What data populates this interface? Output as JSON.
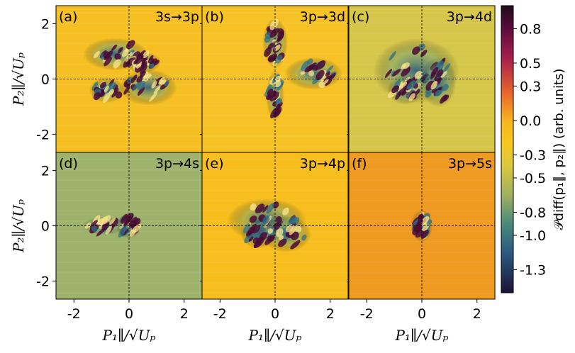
{
  "chart_data": {
    "type": "heatmap",
    "layout": "2x3 grid",
    "x_axis": {
      "label": "P₁∥/√Uₚ",
      "range": [
        -2.65,
        2.65
      ],
      "ticks": [
        -2,
        0,
        2
      ],
      "tick_labels": [
        "-2",
        "0",
        "2"
      ]
    },
    "y_axis": {
      "label": "P₂∥/√Uₚ",
      "range": [
        -2.65,
        2.65
      ],
      "ticks": [
        2,
        0,
        -2
      ],
      "tick_labels": [
        "2",
        "0",
        "-2"
      ]
    },
    "reference_lines": {
      "x": 0,
      "y": 0,
      "style": "dashed"
    },
    "panels": [
      {
        "id": "(a)",
        "transition": "3s→3p",
        "background": "#f6c024"
      },
      {
        "id": "(b)",
        "transition": "3p→3d",
        "background": "#f6c226"
      },
      {
        "id": "(c)",
        "transition": "3p→4d",
        "background": "#d6c64a"
      },
      {
        "id": "(d)",
        "transition": "3p→4s",
        "background": "#9fb26b"
      },
      {
        "id": "(e)",
        "transition": "3p→4p",
        "background": "#f7be1e"
      },
      {
        "id": "(f)",
        "transition": "3p→5s",
        "background": "#ef9a20"
      }
    ],
    "colorbar": {
      "label": "𝒫diff(p₁∥, p₂∥) (arb. units)",
      "range": [
        -1.5,
        1.0
      ],
      "ticks": [
        0.8,
        0.5,
        0.3,
        0.0,
        -0.3,
        -0.5,
        -0.8,
        -1.0,
        -1.3
      ],
      "tick_labels": [
        "0.8",
        "0.5",
        "0.3",
        "0.0",
        "-0.3",
        "-0.5",
        "-0.8",
        "-1.0",
        "-1.3"
      ],
      "colormap": "inferno-like diverging",
      "stops": [
        "#fbf8a0",
        "#f7cf2c",
        "#f2a81f",
        "#e9c135",
        "#a8b65a",
        "#3f8b7a",
        "#2a5a80",
        "#2a2a5c",
        "#1d1030"
      ]
    },
    "grid": false
  }
}
